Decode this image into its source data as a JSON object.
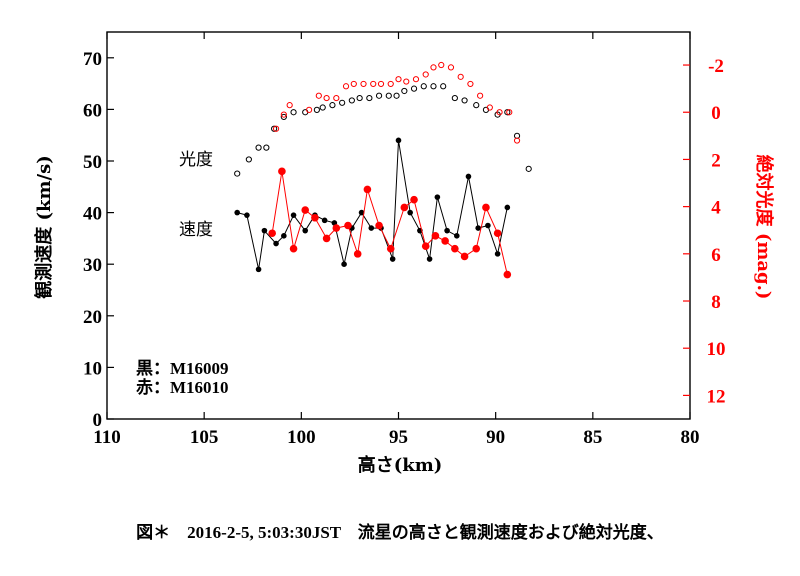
{
  "chart_data": {
    "type": "scatter",
    "xlabel": "高さ(km)",
    "ylabel_left": "観測速度 (km/s)",
    "ylabel_right": "絶対光度 (mag.)",
    "xlim": [
      110,
      80
    ],
    "ylim_left": [
      0,
      75
    ],
    "ylim_right": [
      13,
      -3.4
    ],
    "x_ticks": [
      110,
      105,
      100,
      95,
      90,
      85,
      80
    ],
    "y_left_ticks": [
      0,
      10,
      20,
      30,
      40,
      50,
      60,
      70
    ],
    "y_right_ticks": [
      -2,
      0,
      2,
      4,
      6,
      8,
      10,
      12
    ],
    "annotations": {
      "brightness": "光度",
      "speed": "速度"
    },
    "legend": [
      "黒：M16009",
      "赤：M16010"
    ],
    "colors": {
      "black": "#000000",
      "red": "#ff0000"
    },
    "series": [
      {
        "name": "M16009 光度",
        "color": "#000000",
        "marker": "open-circle",
        "axis": "right",
        "line": false,
        "points": [
          [
            103.3,
            2.6
          ],
          [
            102.7,
            2.0
          ],
          [
            102.2,
            1.5
          ],
          [
            101.8,
            1.5
          ],
          [
            101.4,
            0.7
          ],
          [
            100.9,
            0.2
          ],
          [
            100.4,
            0.0
          ],
          [
            99.8,
            0.0
          ],
          [
            99.2,
            -0.1
          ],
          [
            98.9,
            -0.2
          ],
          [
            98.4,
            -0.3
          ],
          [
            97.9,
            -0.4
          ],
          [
            97.4,
            -0.5
          ],
          [
            97.0,
            -0.6
          ],
          [
            96.5,
            -0.6
          ],
          [
            96.0,
            -0.7
          ],
          [
            95.5,
            -0.7
          ],
          [
            95.1,
            -0.7
          ],
          [
            94.7,
            -0.9
          ],
          [
            94.2,
            -1.0
          ],
          [
            93.7,
            -1.1
          ],
          [
            93.2,
            -1.1
          ],
          [
            92.7,
            -1.1
          ],
          [
            92.1,
            -0.6
          ],
          [
            91.6,
            -0.5
          ],
          [
            91.0,
            -0.3
          ],
          [
            90.5,
            -0.1
          ],
          [
            89.9,
            0.1
          ],
          [
            89.4,
            0.0
          ],
          [
            88.9,
            1.0
          ],
          [
            88.3,
            2.4
          ]
        ]
      },
      {
        "name": "M16010 光度",
        "color": "#ff0000",
        "marker": "open-circle",
        "axis": "right",
        "line": false,
        "points": [
          [
            101.3,
            0.7
          ],
          [
            100.9,
            0.1
          ],
          [
            100.6,
            -0.3
          ],
          [
            99.6,
            -0.1
          ],
          [
            99.1,
            -0.7
          ],
          [
            98.7,
            -0.6
          ],
          [
            98.2,
            -0.6
          ],
          [
            97.7,
            -1.1
          ],
          [
            97.3,
            -1.2
          ],
          [
            96.8,
            -1.2
          ],
          [
            96.3,
            -1.2
          ],
          [
            95.9,
            -1.2
          ],
          [
            95.4,
            -1.2
          ],
          [
            95.0,
            -1.4
          ],
          [
            94.6,
            -1.3
          ],
          [
            94.1,
            -1.4
          ],
          [
            93.6,
            -1.6
          ],
          [
            93.2,
            -1.9
          ],
          [
            92.8,
            -2.0
          ],
          [
            92.3,
            -1.9
          ],
          [
            91.8,
            -1.5
          ],
          [
            91.3,
            -1.2
          ],
          [
            90.8,
            -0.7
          ],
          [
            90.3,
            -0.2
          ],
          [
            89.8,
            0.0
          ],
          [
            89.3,
            0.0
          ],
          [
            88.9,
            1.2
          ]
        ]
      },
      {
        "name": "M16009 速度",
        "color": "#000000",
        "marker": "filled-circle",
        "axis": "left",
        "line": true,
        "points": [
          [
            103.3,
            40
          ],
          [
            102.8,
            39.5
          ],
          [
            102.2,
            29
          ],
          [
            101.9,
            36.5
          ],
          [
            101.3,
            34
          ],
          [
            100.9,
            35.5
          ],
          [
            100.4,
            39.5
          ],
          [
            99.8,
            36.5
          ],
          [
            99.3,
            39.5
          ],
          [
            98.8,
            38.5
          ],
          [
            98.3,
            38
          ],
          [
            97.8,
            30
          ],
          [
            97.4,
            37
          ],
          [
            96.9,
            40
          ],
          [
            96.4,
            37
          ],
          [
            95.9,
            37
          ],
          [
            95.3,
            31
          ],
          [
            95.0,
            54
          ],
          [
            94.4,
            40
          ],
          [
            93.9,
            36.5
          ],
          [
            93.4,
            31
          ],
          [
            93.0,
            43
          ],
          [
            92.5,
            36.5
          ],
          [
            92.0,
            35.5
          ],
          [
            91.4,
            47
          ],
          [
            90.9,
            37
          ],
          [
            90.4,
            37.5
          ],
          [
            89.9,
            32
          ],
          [
            89.4,
            41
          ]
        ]
      },
      {
        "name": "M16010 速度",
        "color": "#ff0000",
        "marker": "filled-circle",
        "axis": "left",
        "line": true,
        "points": [
          [
            101.5,
            36
          ],
          [
            101.0,
            48
          ],
          [
            100.4,
            33
          ],
          [
            99.8,
            40.5
          ],
          [
            99.3,
            39
          ],
          [
            98.7,
            35
          ],
          [
            98.2,
            37
          ],
          [
            97.6,
            37.5
          ],
          [
            97.1,
            32
          ],
          [
            96.6,
            44.5
          ],
          [
            96.0,
            37.5
          ],
          [
            95.4,
            33
          ],
          [
            94.7,
            41
          ],
          [
            94.2,
            42.5
          ],
          [
            93.6,
            33.5
          ],
          [
            93.1,
            35.5
          ],
          [
            92.6,
            34.5
          ],
          [
            92.1,
            33
          ],
          [
            91.6,
            31.5
          ],
          [
            91.0,
            33
          ],
          [
            90.5,
            41
          ],
          [
            89.9,
            36
          ],
          [
            89.4,
            28
          ]
        ]
      }
    ]
  },
  "caption": "図＊　2016-2-5, 5:03:30JST　流星の高さと観測速度および絶対光度、"
}
